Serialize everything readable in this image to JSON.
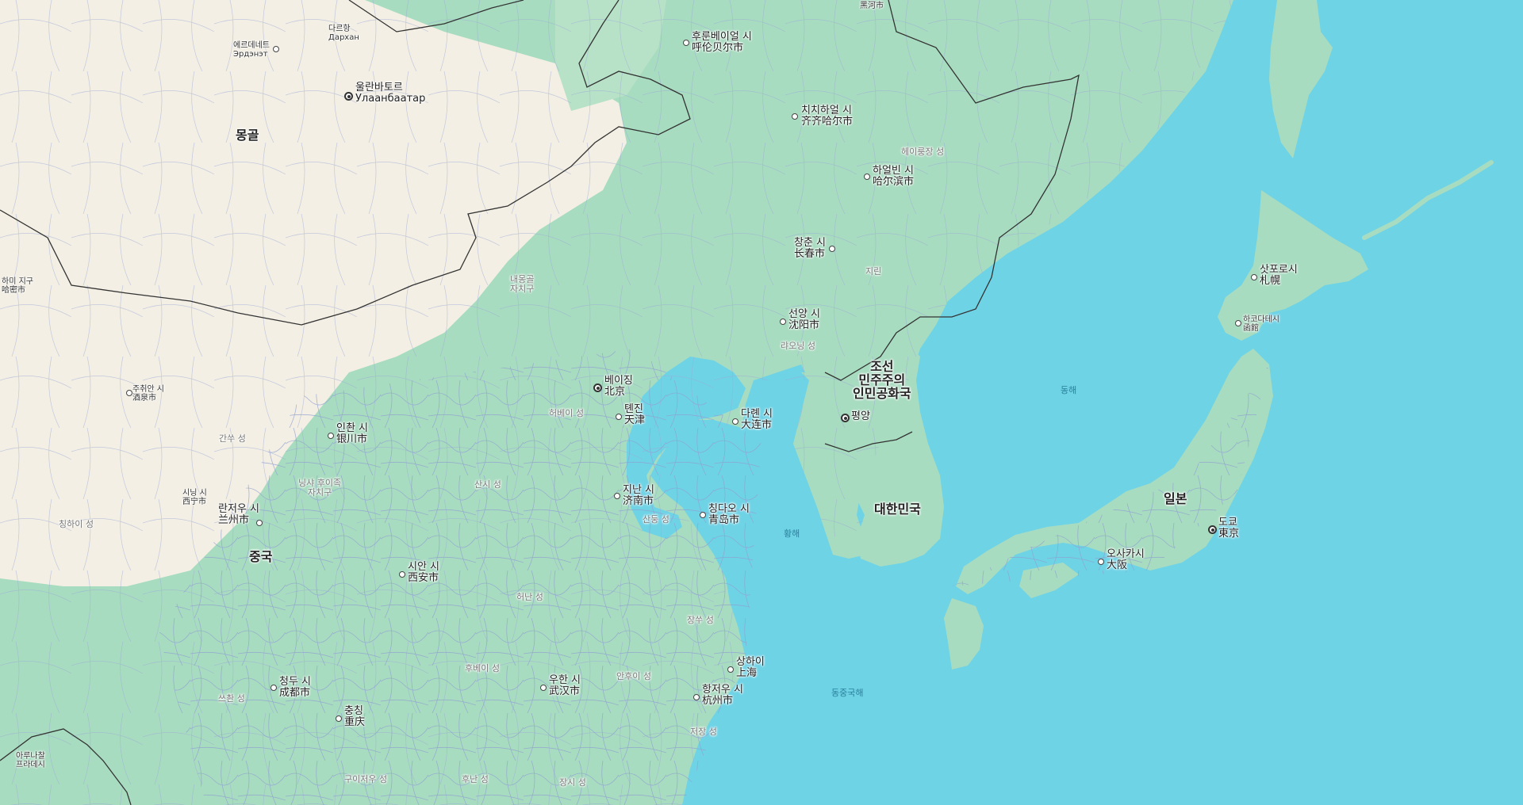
{
  "map": {
    "countries": [
      {
        "id": "mongolia",
        "name": "몽골"
      },
      {
        "id": "china",
        "name": "중국"
      },
      {
        "id": "dprk",
        "name": "조선\n민주주의\n인민공화국"
      },
      {
        "id": "korea",
        "name": "대한민국"
      },
      {
        "id": "japan",
        "name": "일본"
      }
    ],
    "cities": [
      {
        "id": "ulaanbaatar",
        "ko": "울란바토르",
        "local": "Улаанбаатар",
        "capital": true
      },
      {
        "id": "darkhan",
        "ko": "다르항",
        "local": "Дархан",
        "capital": false
      },
      {
        "id": "erdenet",
        "ko": "에르데네트",
        "local": "Эрдэнэт",
        "capital": false
      },
      {
        "id": "hulunbuir",
        "ko": "후룬베이얼 시",
        "local": "呼伦贝尔市",
        "capital": false
      },
      {
        "id": "heihe",
        "ko": "",
        "local": "黑河市",
        "capital": false
      },
      {
        "id": "qiqihar",
        "ko": "치치하얼 시",
        "local": "齐齐哈尔市",
        "capital": false
      },
      {
        "id": "harbin",
        "ko": "하얼빈 시",
        "local": "哈尔滨市",
        "capital": false
      },
      {
        "id": "changchun",
        "ko": "창춘 시",
        "local": "长春市",
        "capital": false
      },
      {
        "id": "shenyang",
        "ko": "선양 시",
        "local": "沈阳市",
        "capital": false
      },
      {
        "id": "beijing",
        "ko": "베이징",
        "local": "北京",
        "capital": true
      },
      {
        "id": "tianjin",
        "ko": "톈진",
        "local": "天津",
        "capital": false
      },
      {
        "id": "dalian",
        "ko": "다롄 시",
        "local": "大连市",
        "capital": false
      },
      {
        "id": "pyongyang",
        "ko": "평양",
        "local": "",
        "capital": true
      },
      {
        "id": "jinan",
        "ko": "지난 시",
        "local": "济南市",
        "capital": false
      },
      {
        "id": "qingdao",
        "ko": "칭다오 시",
        "local": "青岛市",
        "capital": false
      },
      {
        "id": "yinchuan",
        "ko": "인촨 시",
        "local": "银川市",
        "capital": false
      },
      {
        "id": "jiuquan",
        "ko": "주취안 시",
        "local": "酒泉市",
        "capital": false
      },
      {
        "id": "hami",
        "ko": "하미 지구",
        "local": "哈密市",
        "capital": false
      },
      {
        "id": "xining",
        "ko": "시닝 시",
        "local": "西宁市",
        "capital": false
      },
      {
        "id": "lanzhou",
        "ko": "란저우 시",
        "local": "兰州市",
        "capital": false
      },
      {
        "id": "xian",
        "ko": "시안 시",
        "local": "西安市",
        "capital": false
      },
      {
        "id": "chengdu",
        "ko": "청두 시",
        "local": "成都市",
        "capital": false
      },
      {
        "id": "chongqing",
        "ko": "충칭",
        "local": "重庆",
        "capital": false
      },
      {
        "id": "wuhan",
        "ko": "우한 시",
        "local": "武汉市",
        "capital": false
      },
      {
        "id": "shanghai",
        "ko": "상하이",
        "local": "上海",
        "capital": false
      },
      {
        "id": "hangzhou",
        "ko": "항저우 시",
        "local": "杭州市",
        "capital": false
      },
      {
        "id": "sapporo",
        "ko": "삿포로시",
        "local": "札幌",
        "capital": false
      },
      {
        "id": "hakodate",
        "ko": "하코다테시",
        "local": "函館",
        "capital": false
      },
      {
        "id": "osaka",
        "ko": "오사카시",
        "local": "大阪",
        "capital": false
      },
      {
        "id": "tokyo",
        "ko": "도쿄",
        "local": "東京",
        "capital": true
      },
      {
        "id": "arunachal",
        "ko": "아루나찰\n프라데시",
        "local": "",
        "capital": false
      }
    ],
    "provinces": [
      {
        "id": "heilongjiang",
        "name": "헤이룽장 성"
      },
      {
        "id": "jilin",
        "name": "지린"
      },
      {
        "id": "liaoning",
        "name": "랴오닝 성"
      },
      {
        "id": "innermongolia",
        "name": "내몽골\n자치구"
      },
      {
        "id": "hebei",
        "name": "허베이 성"
      },
      {
        "id": "shanxi",
        "name": "산시 성"
      },
      {
        "id": "shandong",
        "name": "산둥 성"
      },
      {
        "id": "gansu",
        "name": "간쑤 성"
      },
      {
        "id": "ningxia",
        "name": "닝샤 후이족\n자치구"
      },
      {
        "id": "qinghai",
        "name": "칭하이 성"
      },
      {
        "id": "henan",
        "name": "허난 성"
      },
      {
        "id": "jiangsu",
        "name": "장쑤 성"
      },
      {
        "id": "hubei",
        "name": "후베이 성"
      },
      {
        "id": "anhui",
        "name": "안후이 성"
      },
      {
        "id": "sichuan",
        "name": "쓰촨 성"
      },
      {
        "id": "zhejiang",
        "name": "저장 성"
      },
      {
        "id": "guizhou",
        "name": "구이저우 성"
      },
      {
        "id": "hunan",
        "name": "후난 성"
      },
      {
        "id": "jiangxi",
        "name": "장시 성"
      }
    ],
    "seas": [
      {
        "id": "eastsea",
        "name": "동해"
      },
      {
        "id": "yellowsea",
        "name": "황해"
      },
      {
        "id": "eastchinasea",
        "name": "동중국해"
      }
    ],
    "colors": {
      "water": "#6fd3e6",
      "land_green": "#a8dcc0",
      "land_desert": "#f3efe4",
      "roads": "#8f9fd0",
      "border": "#333333"
    }
  }
}
